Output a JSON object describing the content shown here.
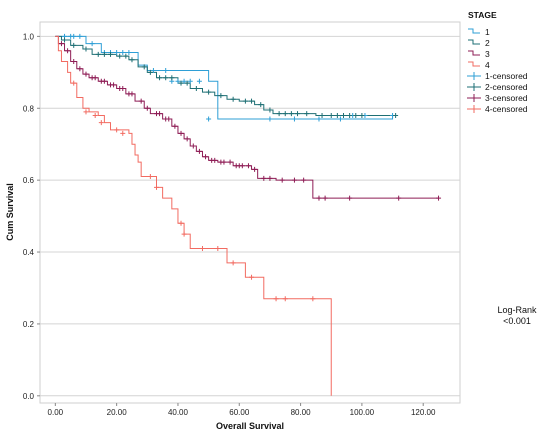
{
  "chart_data": {
    "type": "line",
    "subtype": "kaplan-meier step",
    "xlabel": "Overall Survival",
    "ylabel": "Cum Survival",
    "xlim": [
      -5,
      132
    ],
    "ylim": [
      -0.02,
      1.04
    ],
    "x_ticks": [
      0,
      20,
      40,
      60,
      80,
      100,
      120
    ],
    "x_tick_labels": [
      "0.00",
      "20.00",
      "40.00",
      "60.00",
      "80.00",
      "100.00",
      "120.00"
    ],
    "y_ticks": [
      0,
      0.2,
      0.4,
      0.6,
      0.8,
      1.0
    ],
    "y_tick_labels": [
      "0.0",
      "0.2",
      "0.4",
      "0.6",
      "0.8",
      "1.0"
    ],
    "grid": "horizontal",
    "legend_title": "STAGE",
    "legend_position": "right",
    "legend": [
      {
        "label": "1",
        "color": "#2e9fd6",
        "kind": "line"
      },
      {
        "label": "2",
        "color": "#1e6f74",
        "kind": "line"
      },
      {
        "label": "3",
        "color": "#8e1c55",
        "kind": "line"
      },
      {
        "label": "4",
        "color": "#f26b61",
        "kind": "line"
      },
      {
        "label": "1-censored",
        "color": "#2e9fd6",
        "kind": "plus"
      },
      {
        "label": "2-censored",
        "color": "#1e6f74",
        "kind": "plus"
      },
      {
        "label": "3-censored",
        "color": "#8e1c55",
        "kind": "plus"
      },
      {
        "label": "4-censored",
        "color": "#f26b61",
        "kind": "plus"
      }
    ],
    "series": [
      {
        "name": "1",
        "color": "#2e9fd6",
        "steps": [
          [
            0,
            1.0
          ],
          [
            10,
            0.98
          ],
          [
            15,
            0.955
          ],
          [
            27,
            0.92
          ],
          [
            30,
            0.905
          ],
          [
            50,
            0.875
          ],
          [
            53,
            0.77
          ],
          [
            68,
            0.77
          ],
          [
            110,
            0.78
          ]
        ],
        "censored": [
          [
            3,
            1.0
          ],
          [
            5,
            1.0
          ],
          [
            6,
            1.0
          ],
          [
            8,
            1.0
          ],
          [
            12,
            0.98
          ],
          [
            16,
            0.955
          ],
          [
            18,
            0.955
          ],
          [
            20,
            0.955
          ],
          [
            22,
            0.955
          ],
          [
            24,
            0.955
          ],
          [
            32,
            0.905
          ],
          [
            36,
            0.905
          ],
          [
            38,
            0.875
          ],
          [
            40,
            0.875
          ],
          [
            42,
            0.875
          ],
          [
            44,
            0.875
          ],
          [
            47,
            0.875
          ],
          [
            50,
            0.77
          ],
          [
            70,
            0.77
          ],
          [
            78,
            0.77
          ],
          [
            86,
            0.77
          ],
          [
            93,
            0.77
          ],
          [
            97,
            0.78
          ],
          [
            101,
            0.78
          ],
          [
            110,
            0.78
          ]
        ]
      },
      {
        "name": "2",
        "color": "#1e6f74",
        "steps": [
          [
            0,
            1.0
          ],
          [
            2,
            0.99
          ],
          [
            5,
            0.975
          ],
          [
            9,
            0.965
          ],
          [
            12,
            0.95
          ],
          [
            20,
            0.945
          ],
          [
            24,
            0.935
          ],
          [
            27,
            0.915
          ],
          [
            30,
            0.9
          ],
          [
            33,
            0.885
          ],
          [
            40,
            0.87
          ],
          [
            44,
            0.855
          ],
          [
            48,
            0.845
          ],
          [
            52,
            0.835
          ],
          [
            56,
            0.825
          ],
          [
            60,
            0.82
          ],
          [
            65,
            0.81
          ],
          [
            68,
            0.795
          ],
          [
            71,
            0.785
          ],
          [
            80,
            0.785
          ],
          [
            85,
            0.78
          ],
          [
            111,
            0.78
          ]
        ],
        "censored": [
          [
            3,
            0.99
          ],
          [
            6,
            0.975
          ],
          [
            10,
            0.965
          ],
          [
            14,
            0.95
          ],
          [
            16,
            0.95
          ],
          [
            18,
            0.95
          ],
          [
            21,
            0.945
          ],
          [
            23,
            0.945
          ],
          [
            25,
            0.935
          ],
          [
            29,
            0.915
          ],
          [
            31,
            0.9
          ],
          [
            34,
            0.885
          ],
          [
            36,
            0.885
          ],
          [
            38,
            0.885
          ],
          [
            41,
            0.87
          ],
          [
            43,
            0.87
          ],
          [
            46,
            0.855
          ],
          [
            50,
            0.845
          ],
          [
            54,
            0.835
          ],
          [
            58,
            0.825
          ],
          [
            62,
            0.82
          ],
          [
            64,
            0.82
          ],
          [
            67,
            0.81
          ],
          [
            70,
            0.795
          ],
          [
            73,
            0.785
          ],
          [
            75,
            0.785
          ],
          [
            77,
            0.785
          ],
          [
            79,
            0.785
          ],
          [
            82,
            0.785
          ],
          [
            87,
            0.78
          ],
          [
            90,
            0.78
          ],
          [
            92,
            0.78
          ],
          [
            94,
            0.78
          ],
          [
            96,
            0.78
          ],
          [
            98,
            0.78
          ],
          [
            100,
            0.78
          ],
          [
            111,
            0.78
          ]
        ]
      },
      {
        "name": "3",
        "color": "#8e1c55",
        "steps": [
          [
            0,
            1.0
          ],
          [
            1,
            0.98
          ],
          [
            3,
            0.96
          ],
          [
            5,
            0.93
          ],
          [
            7,
            0.91
          ],
          [
            9,
            0.895
          ],
          [
            11,
            0.885
          ],
          [
            14,
            0.875
          ],
          [
            17,
            0.865
          ],
          [
            20,
            0.855
          ],
          [
            23,
            0.84
          ],
          [
            26,
            0.82
          ],
          [
            29,
            0.8
          ],
          [
            31,
            0.785
          ],
          [
            35,
            0.77
          ],
          [
            38,
            0.75
          ],
          [
            40,
            0.73
          ],
          [
            42,
            0.715
          ],
          [
            44,
            0.695
          ],
          [
            46,
            0.68
          ],
          [
            48,
            0.665
          ],
          [
            50,
            0.655
          ],
          [
            53,
            0.65
          ],
          [
            58,
            0.64
          ],
          [
            64,
            0.63
          ],
          [
            66,
            0.605
          ],
          [
            72,
            0.6
          ],
          [
            83,
            0.6
          ],
          [
            84,
            0.55
          ],
          [
            125,
            0.55
          ]
        ],
        "censored": [
          [
            2,
            0.98
          ],
          [
            4,
            0.96
          ],
          [
            6,
            0.93
          ],
          [
            8,
            0.91
          ],
          [
            10,
            0.895
          ],
          [
            12,
            0.885
          ],
          [
            13,
            0.885
          ],
          [
            15,
            0.875
          ],
          [
            16,
            0.875
          ],
          [
            18,
            0.865
          ],
          [
            19,
            0.865
          ],
          [
            21,
            0.855
          ],
          [
            22,
            0.855
          ],
          [
            24,
            0.84
          ],
          [
            25,
            0.84
          ],
          [
            28,
            0.82
          ],
          [
            30,
            0.8
          ],
          [
            33,
            0.785
          ],
          [
            34,
            0.785
          ],
          [
            36,
            0.77
          ],
          [
            37,
            0.77
          ],
          [
            39,
            0.75
          ],
          [
            41,
            0.73
          ],
          [
            43,
            0.715
          ],
          [
            45,
            0.695
          ],
          [
            47,
            0.68
          ],
          [
            49,
            0.665
          ],
          [
            51,
            0.655
          ],
          [
            52,
            0.655
          ],
          [
            54,
            0.65
          ],
          [
            55,
            0.65
          ],
          [
            57,
            0.65
          ],
          [
            59,
            0.64
          ],
          [
            60,
            0.64
          ],
          [
            61,
            0.64
          ],
          [
            63,
            0.64
          ],
          [
            65,
            0.63
          ],
          [
            68,
            0.605
          ],
          [
            70,
            0.605
          ],
          [
            74,
            0.6
          ],
          [
            78,
            0.6
          ],
          [
            81,
            0.6
          ],
          [
            86,
            0.55
          ],
          [
            88,
            0.55
          ],
          [
            96,
            0.55
          ],
          [
            112,
            0.55
          ],
          [
            125,
            0.55
          ]
        ]
      },
      {
        "name": "4",
        "color": "#f26b61",
        "steps": [
          [
            0,
            1.0
          ],
          [
            1,
            0.96
          ],
          [
            2,
            0.93
          ],
          [
            4,
            0.9
          ],
          [
            5,
            0.87
          ],
          [
            7,
            0.83
          ],
          [
            9,
            0.8
          ],
          [
            11,
            0.79
          ],
          [
            14,
            0.78
          ],
          [
            16,
            0.76
          ],
          [
            18,
            0.74
          ],
          [
            24,
            0.73
          ],
          [
            25,
            0.7
          ],
          [
            26,
            0.67
          ],
          [
            27,
            0.65
          ],
          [
            28,
            0.61
          ],
          [
            33,
            0.58
          ],
          [
            35,
            0.55
          ],
          [
            38,
            0.52
          ],
          [
            40,
            0.48
          ],
          [
            42,
            0.45
          ],
          [
            44,
            0.41
          ],
          [
            52,
            0.41
          ],
          [
            56,
            0.37
          ],
          [
            62,
            0.33
          ],
          [
            68,
            0.27
          ],
          [
            90,
            0.27
          ],
          [
            90,
            0.0
          ]
        ],
        "censored": [
          [
            6,
            0.87
          ],
          [
            10,
            0.79
          ],
          [
            13,
            0.78
          ],
          [
            15,
            0.76
          ],
          [
            20,
            0.74
          ],
          [
            22,
            0.73
          ],
          [
            31,
            0.61
          ],
          [
            33,
            0.58
          ],
          [
            41,
            0.48
          ],
          [
            42,
            0.45
          ],
          [
            48,
            0.41
          ],
          [
            53,
            0.41
          ],
          [
            58,
            0.37
          ],
          [
            64,
            0.33
          ],
          [
            72,
            0.27
          ],
          [
            75,
            0.27
          ],
          [
            84,
            0.27
          ]
        ]
      }
    ],
    "annotation": {
      "line1": "Log-Rank",
      "line2": "<0.001"
    }
  }
}
